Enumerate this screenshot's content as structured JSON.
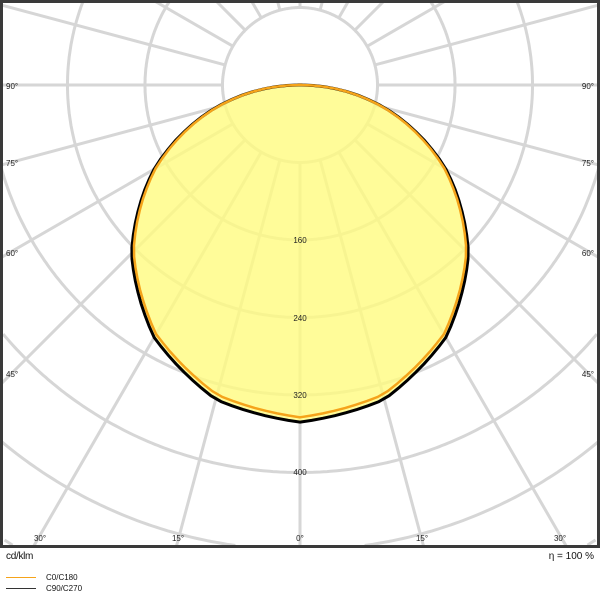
{
  "chart_data": {
    "type": "polar",
    "unit_label": "cd/klm",
    "efficiency_label": "η = 100 %",
    "radial_ticks": [
      80,
      160,
      240,
      320,
      400,
      480,
      560,
      640
    ],
    "radial_tick_labels": [
      "160",
      "240",
      "320",
      "400"
    ],
    "angle_labels": {
      "left": [
        "90°",
        "75°",
        "60°",
        "45°"
      ],
      "right": [
        "90°",
        "75°",
        "60°",
        "45°"
      ],
      "bottom": [
        "30°",
        "15°",
        "0°",
        "15°",
        "30°"
      ]
    },
    "angle_step_deg": 15,
    "angles_deg": [
      0,
      15,
      30,
      45,
      60,
      75,
      90,
      105,
      120,
      135,
      150,
      165,
      180
    ],
    "series": [
      {
        "name": "C0/C180",
        "color": "#f5a31a",
        "values": [
          343,
          331,
          297,
          243,
          172,
          89,
          2,
          0,
          0,
          0,
          0,
          0,
          0
        ]
      },
      {
        "name": "C90/C270",
        "color": "#000000",
        "values": [
          348,
          336,
          301,
          246,
          174,
          90,
          2,
          0,
          0,
          0,
          0,
          0,
          0
        ]
      }
    ],
    "fill_color": "#fffb80",
    "grid": true
  }
}
